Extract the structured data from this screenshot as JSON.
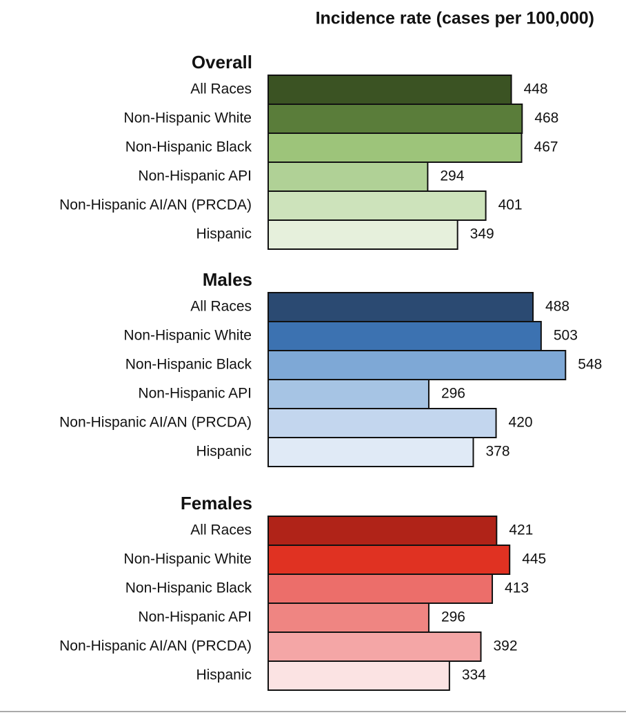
{
  "header": {
    "title": "Incidence rate (cases per 100,000)"
  },
  "chart_data": [
    {
      "type": "bar",
      "title": "Overall",
      "categories": [
        "All Races",
        "Non-Hispanic White",
        "Non-Hispanic Black",
        "Non-Hispanic API",
        "Non-Hispanic AI/AN (PRCDA)",
        "Hispanic"
      ],
      "values": [
        448,
        468,
        467,
        294,
        401,
        349
      ],
      "colors": [
        "#3b5323",
        "#5a7d3a",
        "#9dc47a",
        "#b0d196",
        "#cde3bb",
        "#e6f0dc"
      ]
    },
    {
      "type": "bar",
      "title": "Males",
      "categories": [
        "All Races",
        "Non-Hispanic White",
        "Non-Hispanic Black",
        "Non-Hispanic API",
        "Non-Hispanic AI/AN (PRCDA)",
        "Hispanic"
      ],
      "values": [
        488,
        503,
        548,
        296,
        420,
        378
      ],
      "colors": [
        "#2b4a72",
        "#3c72b1",
        "#7ea8d6",
        "#a6c4e4",
        "#c3d6ee",
        "#e0eaf6"
      ]
    },
    {
      "type": "bar",
      "title": "Females",
      "categories": [
        "All Races",
        "Non-Hispanic White",
        "Non-Hispanic Black",
        "Non-Hispanic API",
        "Non-Hispanic AI/AN (PRCDA)",
        "Hispanic"
      ],
      "values": [
        421,
        445,
        413,
        296,
        392,
        334
      ],
      "colors": [
        "#b02318",
        "#e03222",
        "#ec6e6a",
        "#ef8582",
        "#f4a6a6",
        "#fbe3e3"
      ]
    }
  ]
}
